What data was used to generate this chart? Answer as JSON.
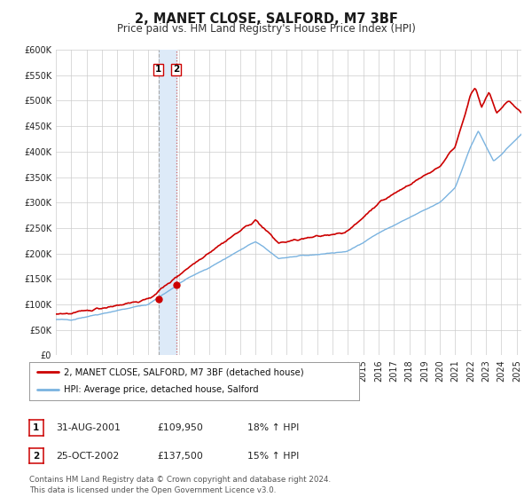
{
  "title": "2, MANET CLOSE, SALFORD, M7 3BF",
  "subtitle": "Price paid vs. HM Land Registry's House Price Index (HPI)",
  "ylim": [
    0,
    600000
  ],
  "yticks": [
    0,
    50000,
    100000,
    150000,
    200000,
    250000,
    300000,
    350000,
    400000,
    450000,
    500000,
    550000,
    600000
  ],
  "xlim_start": 1995.0,
  "xlim_end": 2025.3,
  "sale1_date": 2001.667,
  "sale1_price": 109950,
  "sale2_date": 2002.833,
  "sale2_price": 137500,
  "line_color_hpi": "#7ab3e0",
  "line_color_price": "#cc0000",
  "marker_color": "#cc0000",
  "shading_color": "#ddeaf8",
  "legend_label_price": "2, MANET CLOSE, SALFORD, M7 3BF (detached house)",
  "legend_label_hpi": "HPI: Average price, detached house, Salford",
  "table_row1": [
    "1",
    "31-AUG-2001",
    "£109,950",
    "18% ↑ HPI"
  ],
  "table_row2": [
    "2",
    "25-OCT-2002",
    "£137,500",
    "15% ↑ HPI"
  ],
  "footnote": "Contains HM Land Registry data © Crown copyright and database right 2024.\nThis data is licensed under the Open Government Licence v3.0.",
  "title_fontsize": 10.5,
  "subtitle_fontsize": 8.5,
  "tick_fontsize": 7,
  "grid_color": "#cccccc",
  "bg_color": "#ffffff"
}
